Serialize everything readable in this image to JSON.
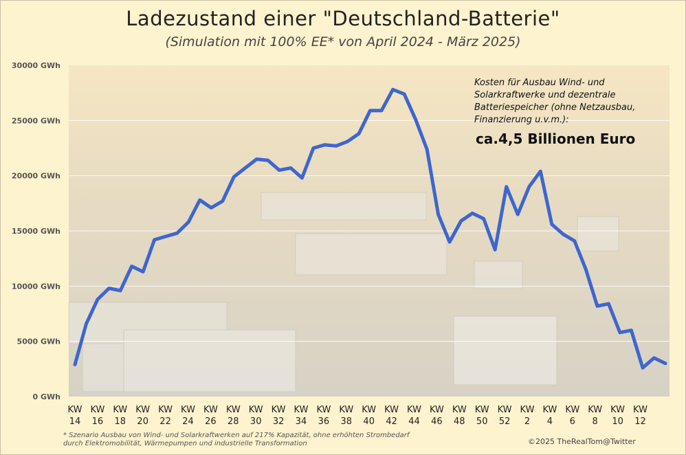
{
  "title": "Ladezustand einer \"Deutschland-Batterie\"",
  "subtitle": "(Simulation mit 100% EE* von April 2024 - März 2025)",
  "annotation": {
    "text": "Kosten für Ausbau Wind- und Solarkraftwerke und dezentrale Batteriespeicher (ohne Netzausbau, Finanzierung u.v.m.):",
    "highlight": "ca.4,5 Billionen Euro"
  },
  "footnote": "* Szenario Ausbau von Wind- und Solarkraftwerken auf 217% Kapazität, ohne erhöhten Strombedarf durch Elektromobilität, Wärmepumpen und industrielle Transformation",
  "credit": "©2025 TheRealTom@Twitter",
  "colors": {
    "line": "#3e66cf",
    "grid": "#ffffff",
    "background": "#fdf3cf"
  },
  "chart_data": {
    "type": "line",
    "ylim": [
      0,
      30000
    ],
    "yticks": [
      0,
      5000,
      10000,
      15000,
      20000,
      25000,
      30000
    ],
    "ytick_labels": [
      "0 GWh",
      "5000 GWh",
      "10000 GWh",
      "15000 GWh",
      "20000 GWh",
      "25000 GWh",
      "30000 GWh"
    ],
    "xtick_labels": [
      "KW 14",
      "KW 16",
      "KW 18",
      "KW 20",
      "KW 22",
      "KW 24",
      "KW 26",
      "KW 28",
      "KW 30",
      "KW 32",
      "KW 34",
      "KW 36",
      "KW 38",
      "KW 40",
      "KW 42",
      "KW 44",
      "KW 46",
      "KW 48",
      "KW 50",
      "KW 52",
      "KW 2",
      "KW 4",
      "KW 6",
      "KW 8",
      "KW 10",
      "KW 12"
    ],
    "grid": true,
    "series": [
      {
        "values": [
          2900,
          6600,
          8800,
          9800,
          9600,
          11800,
          11300,
          14200,
          14500,
          14800,
          15800,
          17800,
          17100,
          17700,
          19900,
          20700,
          21500,
          21400,
          20500,
          20700,
          19800,
          22500,
          22800,
          22700,
          23100,
          23800,
          25900,
          25900,
          27800,
          27400,
          25100,
          22400,
          16500,
          14000,
          15900,
          16600,
          16100,
          13300,
          19000,
          16500,
          19000,
          20400,
          15600,
          14700,
          14100,
          11500,
          8200,
          8400,
          5800,
          6000,
          2600,
          3500,
          3000
        ]
      }
    ]
  }
}
